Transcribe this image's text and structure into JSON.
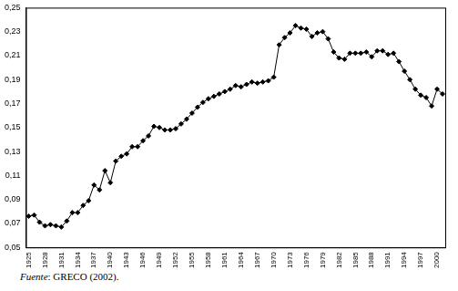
{
  "chart_data": {
    "type": "line",
    "categories": [
      "1925",
      null,
      null,
      "1928",
      null,
      null,
      "1931",
      null,
      null,
      "1934",
      null,
      null,
      "1937",
      null,
      null,
      "1940",
      null,
      null,
      "1943",
      null,
      null,
      "1946",
      null,
      null,
      "1949",
      null,
      null,
      "1952",
      null,
      null,
      "1955",
      null,
      null,
      "1958",
      null,
      null,
      "1961",
      null,
      null,
      "1964",
      null,
      null,
      "1967",
      null,
      null,
      "1970",
      null,
      null,
      "1973",
      null,
      null,
      "1976",
      null,
      null,
      "1979",
      null,
      null,
      "1982",
      null,
      null,
      "1985",
      null,
      null,
      "1988",
      null,
      null,
      "1991",
      null,
      null,
      "1994",
      null,
      null,
      "1997",
      null,
      null,
      "2000",
      null
    ],
    "values": [
      0.076,
      0.077,
      0.071,
      0.068,
      0.069,
      0.068,
      0.067,
      0.072,
      0.079,
      0.079,
      0.085,
      0.089,
      0.102,
      0.098,
      0.114,
      0.104,
      0.122,
      0.126,
      0.128,
      0.134,
      0.134,
      0.139,
      0.143,
      0.151,
      0.15,
      0.148,
      0.148,
      0.149,
      0.153,
      0.157,
      0.162,
      0.167,
      0.171,
      0.174,
      0.176,
      0.178,
      0.18,
      0.182,
      0.185,
      0.184,
      0.186,
      0.188,
      0.187,
      0.188,
      0.189,
      0.192,
      0.219,
      0.225,
      0.229,
      0.235,
      0.233,
      0.232,
      0.226,
      0.229,
      0.23,
      0.224,
      0.213,
      0.208,
      0.207,
      0.212,
      0.212,
      0.212,
      0.213,
      0.209,
      0.214,
      0.214,
      0.211,
      0.212,
      0.205,
      0.197,
      0.19,
      0.182,
      0.177,
      0.175,
      0.168,
      0.182,
      0.178
    ],
    "color": "#000000",
    "marker": "diamond",
    "ylim": [
      0.05,
      0.25
    ],
    "yticks": [
      {
        "value": 0.05,
        "label": "0,05"
      },
      {
        "value": 0.07,
        "label": "0,07"
      },
      {
        "value": 0.09,
        "label": "0,09"
      },
      {
        "value": 0.11,
        "label": "0,11"
      },
      {
        "value": 0.13,
        "label": "0,13"
      },
      {
        "value": 0.15,
        "label": "0,15"
      },
      {
        "value": 0.17,
        "label": "0,17"
      },
      {
        "value": 0.19,
        "label": "0,19"
      },
      {
        "value": 0.21,
        "label": "0,21"
      },
      {
        "value": 0.23,
        "label": "0,23"
      },
      {
        "value": 0.25,
        "label": "0,25"
      }
    ],
    "grid": false,
    "source": {
      "label": "Fuente",
      "text": ": GRECO (2002)."
    }
  }
}
